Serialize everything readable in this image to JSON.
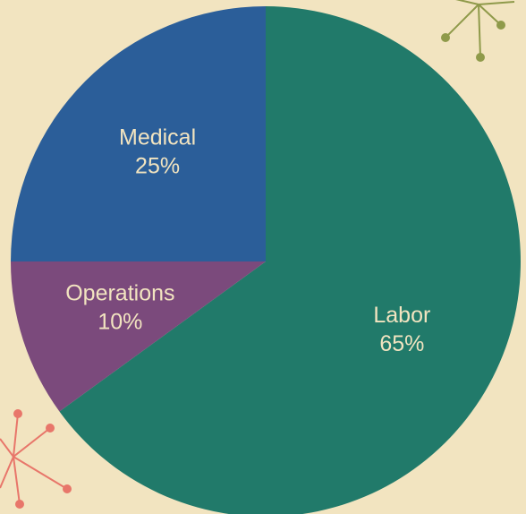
{
  "chart_data": {
    "type": "pie",
    "categories": [
      "Labor",
      "Operations",
      "Medical"
    ],
    "values": [
      65,
      10,
      25
    ],
    "value_labels": [
      "65%",
      "10%",
      "25%"
    ],
    "colors": [
      "#217a6a",
      "#7b4a7c",
      "#2b5e99"
    ]
  }
}
